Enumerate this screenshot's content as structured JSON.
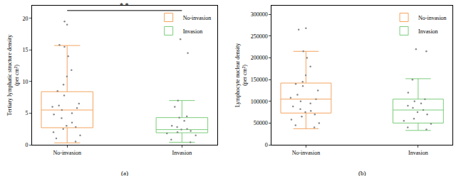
{
  "chart_data": [
    {
      "type": "box",
      "label": "(a)",
      "ylabel": "Tertiary lymphatic structure density (per cm²)",
      "categories": [
        "No-invasion",
        "Invasion"
      ],
      "series": [
        {
          "name": "No-invasion",
          "color": "#f4a460",
          "category": "No-invasion",
          "q1": 2.7,
          "median": 5.5,
          "q3": 8.4,
          "lowerfence": 0.3,
          "upperfence": 15.7,
          "points": [
            19.5,
            19.0,
            15.8,
            15.5,
            14.0,
            11.8,
            10.8,
            9.5,
            8.5,
            7.8,
            6.5,
            6.2,
            6.0,
            5.8,
            5.5,
            5.0,
            4.8,
            4.2,
            3.5,
            3.0,
            2.8,
            2.5,
            2.0,
            1.5,
            1.0,
            0.5
          ]
        },
        {
          "name": "Invasion",
          "color": "#7ccd7c",
          "category": "Invasion",
          "q1": 1.9,
          "median": 2.4,
          "q3": 4.3,
          "lowerfence": 0.4,
          "upperfence": 7.0,
          "points": [
            16.7,
            14.5,
            7.0,
            6.0,
            4.5,
            4.3,
            3.8,
            3.0,
            2.8,
            2.5,
            2.4,
            2.2,
            2.0,
            1.8,
            1.5,
            0.8,
            0.4
          ]
        }
      ],
      "ylim": [
        0,
        22
      ],
      "yticks": [
        0,
        5,
        10,
        15,
        20
      ],
      "legend": "top right",
      "annotations": [
        {
          "text": "* *",
          "from": "No-invasion",
          "to": "Invasion"
        }
      ]
    },
    {
      "type": "box",
      "label": "(b)",
      "ylabel": "Lymphocyte nuclear density (per cm²)",
      "categories": [
        "No-invasion",
        "Invasion"
      ],
      "series": [
        {
          "name": "No-invasion",
          "color": "#f4a460",
          "category": "No-invasion",
          "q1": 73000,
          "median": 105000,
          "q3": 142000,
          "lowerfence": 37000,
          "upperfence": 215000,
          "points": [
            268000,
            265000,
            215000,
            200000,
            180000,
            160000,
            145000,
            140000,
            135000,
            125000,
            115000,
            108000,
            105000,
            100000,
            95000,
            88000,
            82000,
            78000,
            75000,
            70000,
            65000,
            58000,
            50000,
            45000,
            40000
          ]
        },
        {
          "name": "Invasion",
          "color": "#7ccd7c",
          "category": "Invasion",
          "q1": 50000,
          "median": 80000,
          "q3": 105000,
          "lowerfence": 33000,
          "upperfence": 152000,
          "points": [
            220000,
            215000,
            150000,
            120000,
            105000,
            100000,
            95000,
            90000,
            85000,
            80000,
            75000,
            70000,
            60000,
            55000,
            48000,
            40000,
            35000
          ]
        }
      ],
      "ylim": [
        0,
        320000
      ],
      "yticks": [
        0,
        50000,
        100000,
        150000,
        200000,
        250000,
        300000
      ],
      "legend": "top right",
      "annotations": []
    }
  ]
}
